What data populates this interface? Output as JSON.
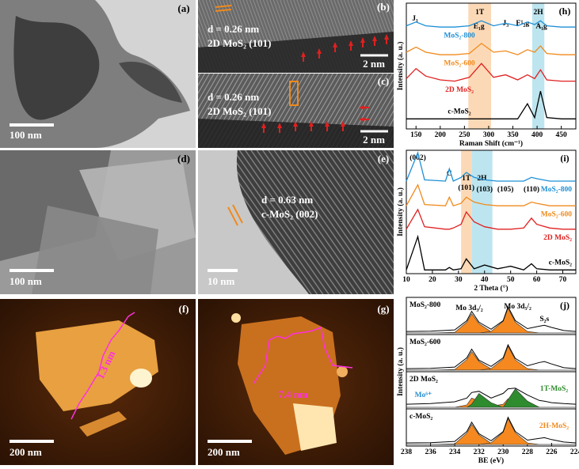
{
  "image_panels": [
    {
      "label": "(a)",
      "scale_bar": "100 nm"
    },
    {
      "label": "(b)",
      "texts": [
        "d = 0.26 nm",
        "2D MoS₂ (101)"
      ],
      "scale_bar": "2 nm"
    },
    {
      "label": "(c)",
      "texts": [
        "d = 0.26 nm",
        "2D MoS₂ (101)"
      ],
      "scale_bar": "2 nm"
    },
    {
      "label": "(d)",
      "scale_bar": "100 nm"
    },
    {
      "label": "(e)",
      "texts": [
        "d = 0.63 nm",
        "c-MoS₂ (002)"
      ],
      "scale_bar": "10 nm"
    },
    {
      "label": "(f)",
      "texts": [
        "1.3 nm"
      ],
      "scale_bar": "200 nm"
    },
    {
      "label": "(g)",
      "texts": [
        "7.4 nm"
      ],
      "scale_bar": "200 nm"
    }
  ],
  "chart_data": [
    {
      "type": "line",
      "label": "(h)",
      "xlabel": "Raman Shift (cm⁻¹)",
      "ylabel": "Intensity (a. u.)",
      "xlim": [
        130,
        480
      ],
      "xticks": [
        150,
        200,
        250,
        300,
        350,
        400,
        450
      ],
      "ylim": [
        0,
        100
      ],
      "bands": [
        {
          "label": "1T",
          "range": [
            258,
            305
          ],
          "color": "#fcd9b6"
        },
        {
          "label": "2H",
          "range": [
            390,
            415
          ],
          "color": "#bde5ef"
        }
      ],
      "annotations": [
        "J₁",
        "E₁g",
        "J₃",
        "E¹₂g",
        "A₁g"
      ],
      "x": [
        130,
        150,
        170,
        200,
        230,
        260,
        285,
        310,
        335,
        360,
        380,
        395,
        407,
        420,
        450,
        480
      ],
      "series": [
        {
          "name": "MoS₂-800",
          "color": "#1e8fd6",
          "values": [
            82,
            85,
            82,
            81,
            81,
            82,
            86,
            82,
            84,
            82,
            85,
            83,
            86,
            82,
            81,
            81
          ]
        },
        {
          "name": "MoS₂-600",
          "color": "#f08a1c",
          "values": [
            61,
            65,
            61,
            59,
            59,
            60,
            68,
            61,
            62,
            59,
            63,
            61,
            66,
            60,
            59,
            59
          ]
        },
        {
          "name": "2D MoS₂",
          "color": "#e02020",
          "values": [
            40,
            48,
            42,
            39,
            38,
            41,
            52,
            41,
            43,
            39,
            43,
            40,
            47,
            39,
            38,
            38
          ]
        },
        {
          "name": "c-MoS₂",
          "color": "#000000",
          "values": [
            8,
            8,
            8,
            8,
            8,
            8,
            8,
            8,
            8,
            8,
            20,
            9,
            30,
            9,
            8,
            8
          ]
        }
      ]
    },
    {
      "type": "line",
      "label": "(i)",
      "xlabel": "2 Theta (°)",
      "ylabel": "Intensity (a. u.)",
      "xlim": [
        10,
        75
      ],
      "xticks": [
        10,
        20,
        30,
        40,
        50,
        60,
        70
      ],
      "ylim": [
        0,
        100
      ],
      "bands": [
        {
          "label": "1T",
          "range": [
            31,
            35
          ],
          "color": "#fcd9b6"
        },
        {
          "label": "2H",
          "range": [
            35,
            43
          ],
          "color": "#bde5ef"
        }
      ],
      "annotations": [
        "(002)",
        "C",
        "(101)",
        "(103)",
        "(105)",
        "(110)"
      ],
      "x": [
        10,
        14.4,
        17,
        25,
        26.5,
        28,
        31,
        33,
        36,
        40,
        45,
        50,
        55,
        58,
        60,
        65,
        70,
        75
      ],
      "series": [
        {
          "name": "MoS₂-800",
          "color": "#1e8fd6",
          "values": [
            75,
            98,
            76,
            75,
            85,
            75,
            78,
            82,
            78,
            76,
            75,
            75,
            75,
            78,
            77,
            75,
            75,
            75
          ]
        },
        {
          "name": "MoS₂-600",
          "color": "#f08a1c",
          "values": [
            55,
            72,
            56,
            55,
            62,
            55,
            57,
            62,
            58,
            56,
            55,
            55,
            55,
            58,
            57,
            55,
            55,
            55
          ]
        },
        {
          "name": "2D MoS₂",
          "color": "#e02020",
          "values": [
            36,
            52,
            38,
            36,
            36,
            37,
            40,
            50,
            42,
            38,
            36,
            36,
            37,
            45,
            40,
            37,
            36,
            36
          ]
        },
        {
          "name": "c-MoS₂",
          "color": "#000000",
          "values": [
            3,
            30,
            3,
            3,
            5,
            3,
            4,
            12,
            4,
            7,
            4,
            6,
            3,
            8,
            4,
            3,
            3,
            3
          ]
        }
      ]
    },
    {
      "type": "xps",
      "label": "(j)",
      "xlabel": "BE (eV)",
      "ylabel": "Intensity (a. u.)",
      "xlim": [
        238,
        224
      ],
      "xticks": [
        238,
        236,
        234,
        232,
        230,
        228,
        226,
        224
      ],
      "ylim": [
        0,
        100
      ],
      "x": [
        238,
        236,
        234,
        233,
        232.6,
        232,
        231,
        230,
        229.6,
        229,
        228,
        227,
        226.6,
        226,
        225,
        224
      ],
      "panels": [
        {
          "name": "MoS₂-800",
          "annotations": [
            "Mo 3d₃/₂",
            "Mo 3d₅/₂",
            "S₂s"
          ],
          "envelope": [
            5,
            6,
            10,
            40,
            70,
            35,
            12,
            40,
            85,
            40,
            14,
            22,
            25,
            18,
            8,
            5
          ],
          "components": [
            {
              "color": "#f5891f",
              "values": [
                0,
                0,
                2,
                35,
                62,
                30,
                4,
                0,
                0,
                0,
                0,
                0,
                0,
                0,
                0,
                0
              ]
            },
            {
              "color": "#f5891f",
              "values": [
                0,
                0,
                0,
                0,
                0,
                0,
                5,
                38,
                80,
                35,
                5,
                0,
                0,
                0,
                0,
                0
              ]
            }
          ]
        },
        {
          "name": "MoS₂-600",
          "annotations": [],
          "envelope": [
            5,
            6,
            10,
            40,
            68,
            32,
            12,
            40,
            82,
            38,
            14,
            25,
            28,
            20,
            8,
            5
          ],
          "components": [
            {
              "color": "#f5891f",
              "values": [
                0,
                0,
                2,
                34,
                60,
                28,
                4,
                0,
                0,
                0,
                0,
                0,
                0,
                0,
                0,
                0
              ]
            },
            {
              "color": "#f5891f",
              "values": [
                0,
                0,
                0,
                0,
                0,
                0,
                5,
                36,
                78,
                33,
                5,
                0,
                0,
                0,
                0,
                0
              ]
            }
          ]
        },
        {
          "name": "2D MoS₂",
          "annotations": [
            "Mo⁶⁺",
            "1T-MoS₂"
          ],
          "envelope": [
            10,
            12,
            18,
            30,
            48,
            52,
            30,
            45,
            60,
            62,
            40,
            22,
            20,
            15,
            12,
            10
          ],
          "components": [
            {
              "color": "#f5891f",
              "values": [
                0,
                0,
                0,
                8,
                30,
                20,
                3,
                10,
                28,
                15,
                0,
                0,
                0,
                0,
                0,
                0
              ]
            },
            {
              "color": "#2e8b2e",
              "values": [
                0,
                0,
                0,
                0,
                10,
                45,
                15,
                0,
                25,
                60,
                20,
                0,
                0,
                0,
                0,
                0
              ]
            }
          ]
        },
        {
          "name": "c-MoS₂",
          "annotations": [
            "2H-MoS₂"
          ],
          "envelope": [
            5,
            6,
            10,
            42,
            72,
            35,
            12,
            42,
            88,
            42,
            14,
            20,
            22,
            16,
            8,
            5
          ],
          "components": [
            {
              "color": "#f5891f",
              "values": [
                0,
                0,
                2,
                37,
                65,
                31,
                4,
                0,
                0,
                0,
                0,
                0,
                0,
                0,
                0,
                0
              ]
            },
            {
              "color": "#f5891f",
              "values": [
                0,
                0,
                0,
                0,
                0,
                0,
                5,
                40,
                84,
                38,
                5,
                0,
                0,
                0,
                0,
                0
              ]
            }
          ]
        }
      ]
    }
  ]
}
